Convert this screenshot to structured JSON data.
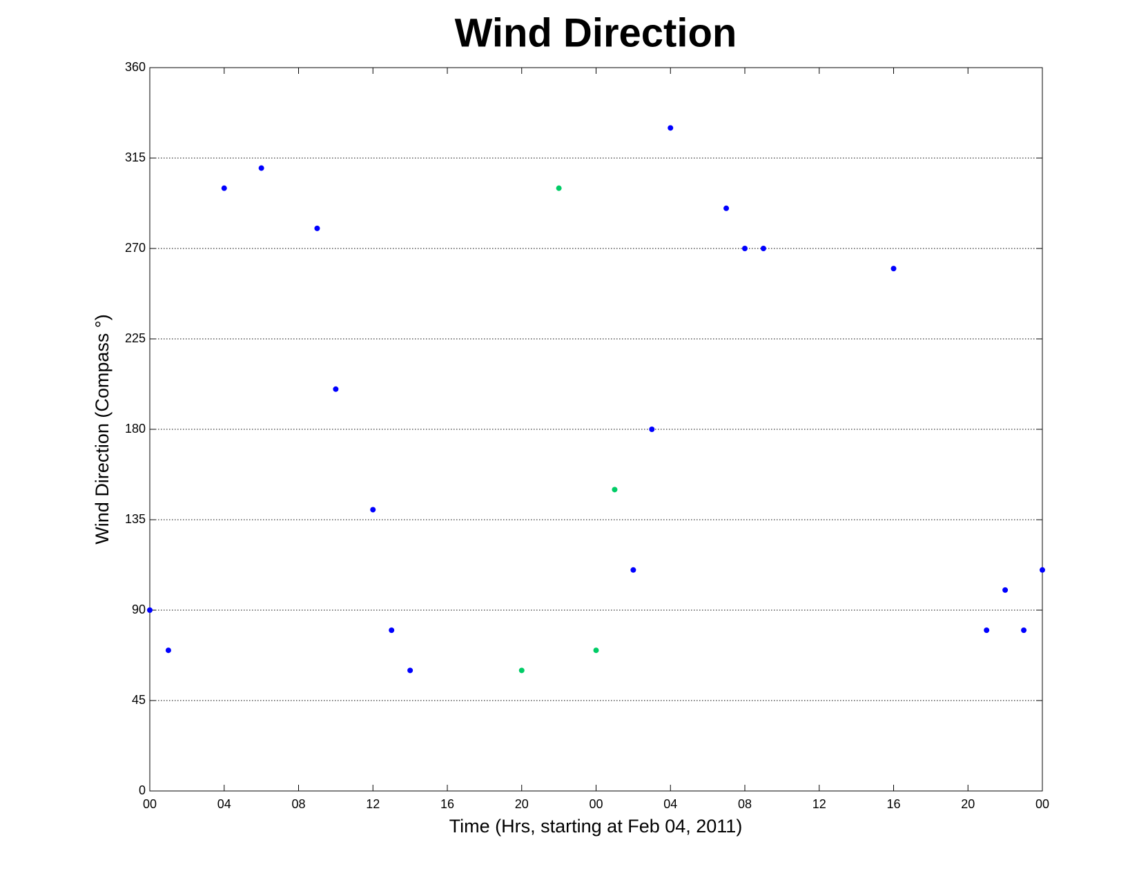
{
  "chart_data": {
    "type": "scatter",
    "title": "Wind Direction",
    "x_label": "Time (Hrs, starting at Feb 04, 2011)",
    "y_label": "Wind Direction (Compass °)",
    "series": [
      {
        "color": "#0000ff",
        "x": [
          0,
          1,
          4,
          6,
          9,
          10,
          12,
          13,
          14,
          26,
          27,
          28,
          31,
          32,
          33,
          40,
          45,
          46,
          47,
          48
        ],
        "values": [
          90,
          70,
          300,
          310,
          280,
          200,
          140,
          80,
          60,
          110,
          180,
          330,
          290,
          270,
          270,
          260,
          80,
          100,
          80,
          110
        ]
      },
      {
        "color": "#00cc66",
        "x": [
          20,
          22,
          24,
          25
        ],
        "values": [
          60,
          300,
          70,
          150
        ]
      }
    ],
    "xlim": [
      0,
      48
    ],
    "xticks": [
      {
        "value": 0,
        "label": "00"
      },
      {
        "value": 4,
        "label": "04"
      },
      {
        "value": 8,
        "label": "08"
      },
      {
        "value": 12,
        "label": "12"
      },
      {
        "value": 16,
        "label": "16"
      },
      {
        "value": 20,
        "label": "20"
      },
      {
        "value": 24,
        "label": "00"
      },
      {
        "value": 28,
        "label": "04"
      },
      {
        "value": 32,
        "label": "08"
      },
      {
        "value": 36,
        "label": "12"
      },
      {
        "value": 40,
        "label": "16"
      },
      {
        "value": 44,
        "label": "20"
      },
      {
        "value": 48,
        "label": "00"
      }
    ],
    "ylim": [
      0,
      360
    ],
    "yticks": [
      0,
      45,
      90,
      135,
      180,
      225,
      270,
      315,
      360
    ],
    "grid": "y"
  }
}
